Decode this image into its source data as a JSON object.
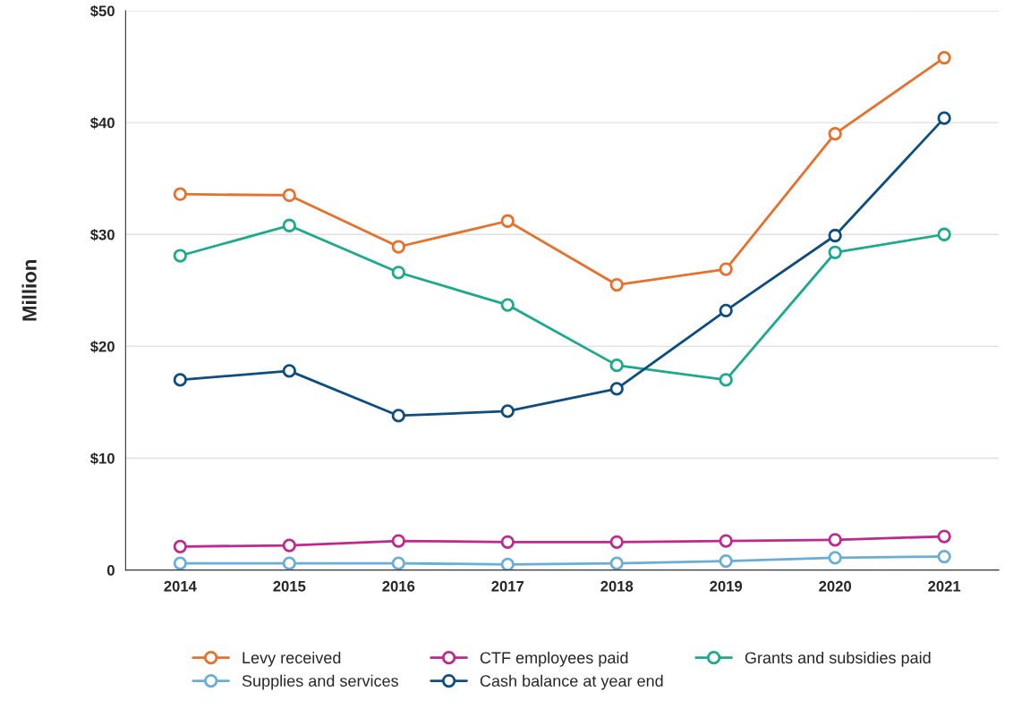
{
  "chart_data": {
    "type": "line",
    "ylabel": "Million",
    "categories": [
      "2014",
      "2015",
      "2016",
      "2017",
      "2018",
      "2019",
      "2020",
      "2021"
    ],
    "series": [
      {
        "name": "Levy received",
        "color": "#e8702a",
        "values": [
          33.6,
          33.5,
          28.9,
          31.2,
          25.5,
          26.9,
          39.0,
          45.8
        ]
      },
      {
        "name": "CTF employees paid",
        "color": "#c0288f",
        "values": [
          2.1,
          2.2,
          2.6,
          2.5,
          2.5,
          2.6,
          2.7,
          3.0
        ]
      },
      {
        "name": "Grants and subsidies paid",
        "color": "#1aaa8c",
        "values": [
          28.1,
          30.8,
          26.6,
          23.7,
          18.3,
          17.0,
          28.4,
          30.0
        ]
      },
      {
        "name": "Supplies and services",
        "color": "#6aaed6",
        "values": [
          0.6,
          0.6,
          0.6,
          0.5,
          0.6,
          0.8,
          1.1,
          1.2
        ]
      },
      {
        "name": "Cash balance at year end",
        "color": "#0e4d80",
        "values": [
          17.0,
          17.8,
          13.8,
          14.2,
          16.2,
          23.2,
          29.9,
          40.4
        ]
      }
    ],
    "ylim": [
      0,
      50
    ],
    "yticks": [
      0,
      {
        "value": 10,
        "label": "$10"
      },
      {
        "value": 20,
        "label": "$20"
      },
      {
        "value": 30,
        "label": "$30"
      },
      {
        "value": 40,
        "label": "$40"
      },
      {
        "value": 50,
        "label": "$50"
      }
    ],
    "grid": "y",
    "legend": "bottom",
    "marker": "circle",
    "line_style": "solid"
  }
}
